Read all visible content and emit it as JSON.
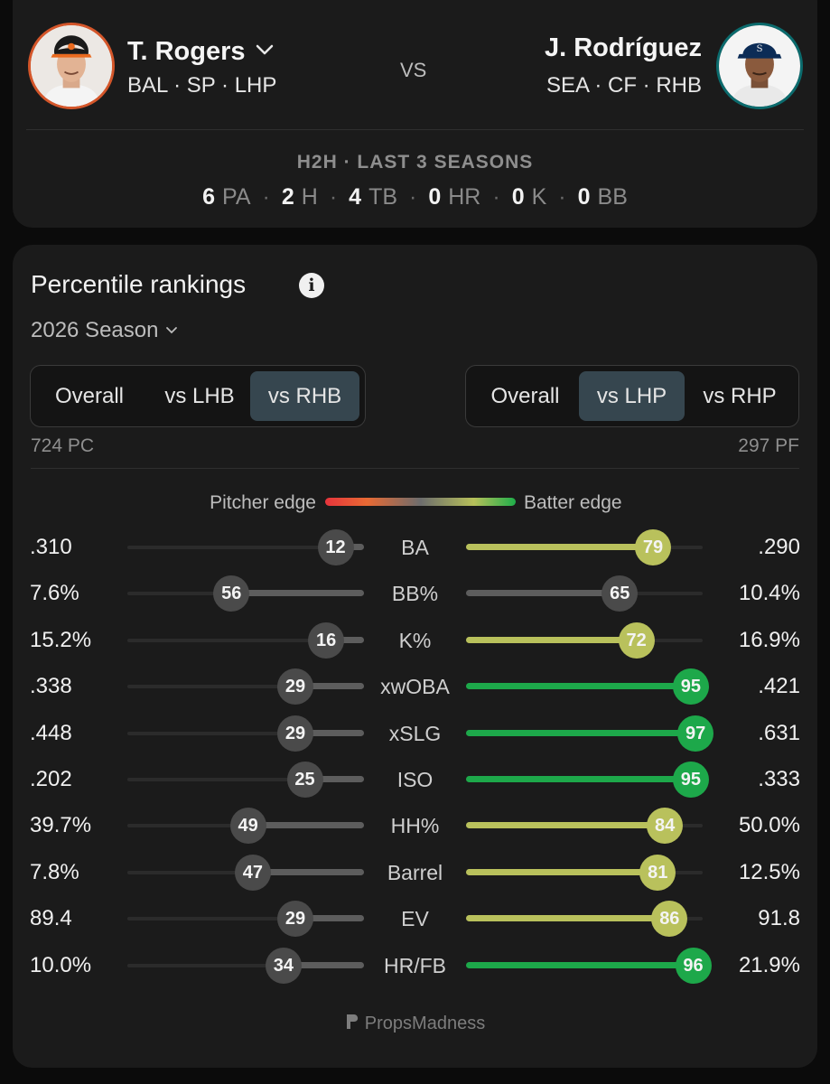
{
  "pitcher": {
    "name": "T. Rogers",
    "meta": "BAL · SP · LHP",
    "photo_name": "pitcher-headshot"
  },
  "batter": {
    "name": "J. Rodríguez",
    "meta": "SEA · CF · RHB",
    "photo_name": "batter-headshot"
  },
  "vs_label": "VS",
  "h2h": {
    "title": "H2H · LAST 3 SEASONS",
    "stats": [
      {
        "value": "6",
        "label": "PA"
      },
      {
        "value": "2",
        "label": "H"
      },
      {
        "value": "4",
        "label": "TB"
      },
      {
        "value": "0",
        "label": "HR"
      },
      {
        "value": "0",
        "label": "K"
      },
      {
        "value": "0",
        "label": "BB"
      }
    ],
    "separator": "·"
  },
  "percentile": {
    "title": "Percentile rankings",
    "info_icon": "info-icon",
    "season": "2026 Season",
    "pitcher_split": {
      "options": [
        "Overall",
        "vs LHB",
        "vs RHB"
      ],
      "selected": "vs RHB"
    },
    "batter_split": {
      "options": [
        "Overall",
        "vs LHP",
        "vs RHP"
      ],
      "selected": "vs LHP"
    },
    "pitcher_sample": "724 PC",
    "batter_sample": "297 PF",
    "legend": {
      "left": "Pitcher edge",
      "right": "Batter edge"
    },
    "rows": [
      {
        "label": "BA",
        "pitcher_value": ".310",
        "pitcher_pct": 12,
        "batter_pct": 79,
        "batter_value": ".290"
      },
      {
        "label": "BB%",
        "pitcher_value": "7.6%",
        "pitcher_pct": 56,
        "batter_pct": 65,
        "batter_value": "10.4%"
      },
      {
        "label": "K%",
        "pitcher_value": "15.2%",
        "pitcher_pct": 16,
        "batter_pct": 72,
        "batter_value": "16.9%"
      },
      {
        "label": "xwOBA",
        "pitcher_value": ".338",
        "pitcher_pct": 29,
        "batter_pct": 95,
        "batter_value": ".421"
      },
      {
        "label": "xSLG",
        "pitcher_value": ".448",
        "pitcher_pct": 29,
        "batter_pct": 97,
        "batter_value": ".631"
      },
      {
        "label": "ISO",
        "pitcher_value": ".202",
        "pitcher_pct": 25,
        "batter_pct": 95,
        "batter_value": ".333"
      },
      {
        "label": "HH%",
        "pitcher_value": "39.7%",
        "pitcher_pct": 49,
        "batter_pct": 84,
        "batter_value": "50.0%"
      },
      {
        "label": "Barrel",
        "pitcher_value": "7.8%",
        "pitcher_pct": 47,
        "batter_pct": 81,
        "batter_value": "12.5%"
      },
      {
        "label": "EV",
        "pitcher_value": "89.4",
        "pitcher_pct": 29,
        "batter_pct": 86,
        "batter_value": "91.8"
      },
      {
        "label": "HR/FB",
        "pitcher_value": "10.0%",
        "pitcher_pct": 34,
        "batter_pct": 96,
        "batter_value": "21.9%"
      }
    ],
    "colors": {
      "neutral": "#4a4a4a",
      "neutral_bar": "#5d5d5d",
      "warm": "#b9c15c",
      "hot": "#1da84a"
    }
  },
  "brand": "PropsMadness"
}
